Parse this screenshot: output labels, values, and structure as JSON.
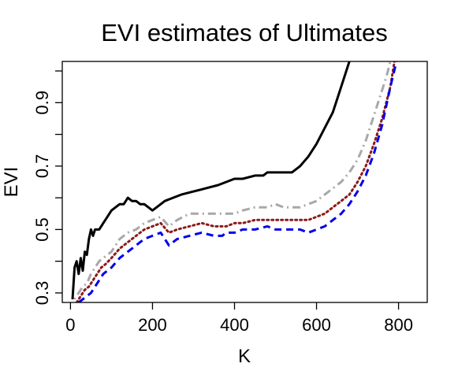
{
  "chart_data": {
    "type": "line",
    "title": "EVI estimates of Ultimates",
    "xlabel": "K",
    "ylabel": "EVI",
    "xlim": [
      -20,
      870
    ],
    "ylim": [
      0.27,
      1.03
    ],
    "xticks": [
      0,
      200,
      400,
      600,
      800
    ],
    "xtick_labels": [
      "0",
      "200",
      "400",
      "600",
      "800"
    ],
    "yticks": [
      0.3,
      0.4,
      0.5,
      0.6,
      0.7,
      0.8,
      0.9,
      1.0
    ],
    "ytick_labels": [
      "0.3",
      "",
      "0.5",
      "",
      "0.7",
      "",
      "0.9",
      ""
    ],
    "grid": false,
    "legend": "none",
    "series": [
      {
        "color": "#000000",
        "style": "solid",
        "x": [
          5,
          10,
          15,
          20,
          25,
          30,
          35,
          40,
          45,
          50,
          55,
          60,
          70,
          80,
          90,
          100,
          110,
          120,
          130,
          140,
          150,
          160,
          170,
          180,
          190,
          200,
          210,
          220,
          230,
          250,
          270,
          300,
          330,
          360,
          380,
          400,
          420,
          450,
          470,
          480,
          500,
          520,
          540,
          560,
          580,
          600,
          620,
          640,
          660,
          680
        ],
        "y": [
          0.28,
          0.38,
          0.4,
          0.36,
          0.41,
          0.37,
          0.43,
          0.42,
          0.47,
          0.5,
          0.48,
          0.5,
          0.5,
          0.52,
          0.54,
          0.56,
          0.57,
          0.58,
          0.58,
          0.6,
          0.59,
          0.59,
          0.58,
          0.58,
          0.57,
          0.56,
          0.57,
          0.58,
          0.59,
          0.6,
          0.61,
          0.62,
          0.63,
          0.64,
          0.65,
          0.66,
          0.66,
          0.67,
          0.67,
          0.68,
          0.68,
          0.68,
          0.68,
          0.7,
          0.73,
          0.77,
          0.82,
          0.87,
          0.95,
          1.03
        ]
      },
      {
        "color": "#a8a8a8",
        "style": "dotdash",
        "x": [
          10,
          20,
          30,
          40,
          50,
          60,
          70,
          80,
          100,
          120,
          140,
          160,
          180,
          200,
          220,
          240,
          260,
          290,
          320,
          350,
          380,
          400,
          420,
          450,
          480,
          500,
          520,
          540,
          560,
          580,
          600,
          620,
          640,
          660,
          680,
          700,
          720,
          740,
          760,
          770,
          780
        ],
        "y": [
          0.28,
          0.3,
          0.32,
          0.33,
          0.36,
          0.38,
          0.4,
          0.41,
          0.43,
          0.47,
          0.49,
          0.5,
          0.52,
          0.53,
          0.54,
          0.51,
          0.53,
          0.55,
          0.55,
          0.55,
          0.55,
          0.55,
          0.56,
          0.57,
          0.57,
          0.58,
          0.57,
          0.57,
          0.57,
          0.58,
          0.59,
          0.61,
          0.63,
          0.65,
          0.68,
          0.72,
          0.78,
          0.86,
          0.94,
          0.98,
          1.03
        ]
      },
      {
        "color": "#8b1a1a",
        "style": "dotted",
        "x": [
          15,
          25,
          35,
          45,
          55,
          65,
          75,
          85,
          100,
          120,
          140,
          160,
          180,
          200,
          220,
          240,
          260,
          290,
          320,
          350,
          380,
          400,
          420,
          450,
          480,
          500,
          520,
          540,
          560,
          580,
          600,
          620,
          640,
          660,
          680,
          700,
          720,
          740,
          760,
          780,
          790
        ],
        "y": [
          0.27,
          0.29,
          0.31,
          0.32,
          0.34,
          0.36,
          0.38,
          0.39,
          0.41,
          0.44,
          0.46,
          0.48,
          0.5,
          0.51,
          0.52,
          0.49,
          0.5,
          0.51,
          0.52,
          0.51,
          0.51,
          0.52,
          0.52,
          0.53,
          0.53,
          0.53,
          0.53,
          0.53,
          0.53,
          0.53,
          0.54,
          0.55,
          0.57,
          0.59,
          0.61,
          0.65,
          0.7,
          0.77,
          0.85,
          0.95,
          1.03
        ]
      },
      {
        "color": "#0000ee",
        "style": "dashed",
        "x": [
          20,
          30,
          40,
          50,
          60,
          70,
          80,
          90,
          100,
          120,
          140,
          160,
          180,
          200,
          220,
          240,
          260,
          290,
          320,
          350,
          370,
          380,
          400,
          420,
          450,
          480,
          500,
          520,
          540,
          560,
          580,
          600,
          620,
          640,
          660,
          680,
          700,
          720,
          740,
          760,
          780,
          795
        ],
        "y": [
          0.27,
          0.28,
          0.29,
          0.3,
          0.32,
          0.34,
          0.36,
          0.37,
          0.38,
          0.41,
          0.43,
          0.45,
          0.47,
          0.48,
          0.49,
          0.45,
          0.47,
          0.48,
          0.49,
          0.48,
          0.48,
          0.49,
          0.49,
          0.5,
          0.5,
          0.51,
          0.5,
          0.5,
          0.5,
          0.5,
          0.49,
          0.5,
          0.51,
          0.53,
          0.55,
          0.58,
          0.62,
          0.67,
          0.74,
          0.83,
          0.95,
          1.03
        ]
      }
    ]
  }
}
